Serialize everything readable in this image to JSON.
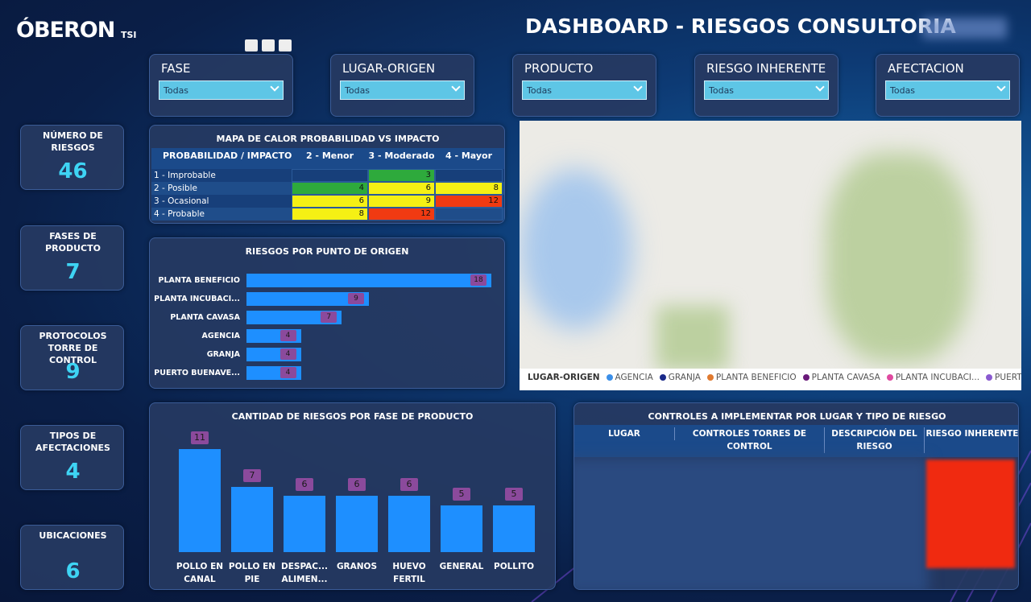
{
  "header": {
    "logo": "ÓBERON",
    "logo_suffix": "TSI",
    "title": "DASHBOARD - RIESGOS CONSULTORIA"
  },
  "filters": [
    {
      "label": "FASE",
      "value": "Todas"
    },
    {
      "label": "LUGAR-ORIGEN",
      "value": "Todas"
    },
    {
      "label": "PRODUCTO",
      "value": "Todas"
    },
    {
      "label": "RIESGO INHERENTE",
      "value": "Todas"
    },
    {
      "label": "AFECTACION",
      "value": "Todas"
    }
  ],
  "kpis": [
    {
      "label": "NÚMERO DE RIESGOS",
      "value": 46
    },
    {
      "label": "FASES DE PRODUCTO",
      "value": 7
    },
    {
      "label": "PROTOCOLOS TORRE DE CONTROL",
      "value": 9
    },
    {
      "label": "TIPOS DE AFECTACIONES",
      "value": 4
    },
    {
      "label": "UBICACIONES",
      "value": 6
    }
  ],
  "heatmap": {
    "title": "MAPA DE CALOR PROBABILIDAD VS IMPACTO",
    "corner": "PROBABILIDAD / IMPACTO",
    "columns": [
      "2 - Menor",
      "3 - Moderado",
      "4 - Mayor"
    ],
    "rows": [
      {
        "label": "1 - Improbable",
        "cells": [
          null,
          3,
          null
        ],
        "colors": [
          null,
          "#2eaa3c",
          null
        ]
      },
      {
        "label": "2 - Posible",
        "cells": [
          4,
          6,
          8
        ],
        "colors": [
          "#2eaa3c",
          "#f5f014",
          "#f5f014"
        ]
      },
      {
        "label": "3 - Ocasional",
        "cells": [
          6,
          9,
          12
        ],
        "colors": [
          "#f5f014",
          "#f5f014",
          "#f03a12"
        ]
      },
      {
        "label": "4 - Probable",
        "cells": [
          8,
          12,
          null
        ],
        "colors": [
          "#f5f014",
          "#f03a12",
          null
        ]
      }
    ]
  },
  "chart_data": [
    {
      "type": "bar",
      "orientation": "horizontal",
      "title": "RIESGOS POR PUNTO DE ORIGEN",
      "categories": [
        "PLANTA BENEFICIO",
        "PLANTA INCUBACI...",
        "PLANTA CAVASA",
        "AGENCIA",
        "GRANJA",
        "PUERTO BUENAVE..."
      ],
      "values": [
        18,
        9,
        7,
        4,
        4,
        4
      ],
      "color": "#1e8fff"
    },
    {
      "type": "bar",
      "orientation": "vertical",
      "title": "CANTIDAD DE RIESGOS POR FASE DE PRODUCTO",
      "categories": [
        "POLLO EN CANAL",
        "POLLO EN PIE",
        "DESPAC... ALIMEN...",
        "GRANOS",
        "HUEVO FERTIL",
        "GENERAL",
        "POLLITO"
      ],
      "values": [
        11,
        7,
        6,
        6,
        6,
        5,
        5
      ],
      "color": "#1e8fff"
    }
  ],
  "map": {
    "legend_title": "LUGAR-ORIGEN",
    "legend": [
      {
        "name": "AGENCIA",
        "color": "#3b8fe8"
      },
      {
        "name": "GRANJA",
        "color": "#1a2a8a"
      },
      {
        "name": "PLANTA BENEFICIO",
        "color": "#e07a30"
      },
      {
        "name": "PLANTA CAVASA",
        "color": "#6a1a7a"
      },
      {
        "name": "PLANTA INCUBACI...",
        "color": "#e04aa0"
      },
      {
        "name": "PUERTO BUE...",
        "color": "#8a5ad0"
      }
    ]
  },
  "controls_table": {
    "title": "CONTROLES A IMPLEMENTAR POR LUGAR Y TIPO DE RIESGO",
    "columns": [
      "LUGAR",
      "CONTROLES TORRES DE CONTROL",
      "DESCRIPCIÓN DEL RIESGO",
      "RIESGO INHERENTE"
    ]
  }
}
